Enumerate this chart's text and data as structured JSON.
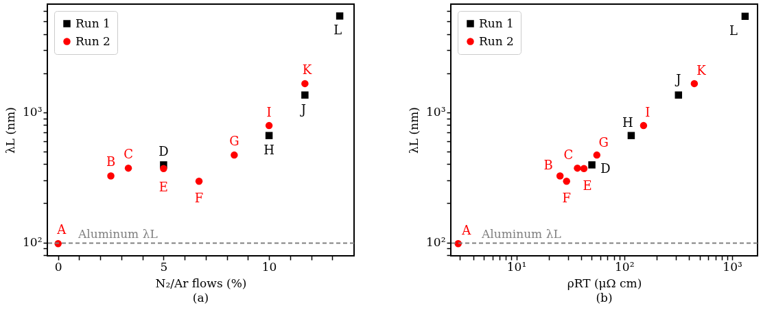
{
  "chart_data": [
    {
      "type": "scatter",
      "title": "(a)",
      "xlabel": "N₂/Ar flows (%)",
      "ylabel": "λL (nm)",
      "log": "y",
      "grid": false,
      "legend": "top left",
      "xlim": [
        -0.51,
        14.03
      ],
      "xticks": [
        0,
        {
          "value": 1,
          "label": null
        },
        {
          "value": 2,
          "label": null
        },
        {
          "value": 3,
          "label": null
        },
        {
          "value": 4,
          "label": null
        },
        5,
        {
          "value": 6,
          "label": null
        },
        {
          "value": 7,
          "label": null
        },
        {
          "value": 8,
          "label": null
        },
        {
          "value": 9,
          "label": null
        },
        10,
        {
          "value": 11,
          "label": null
        },
        {
          "value": 12,
          "label": null
        },
        {
          "value": 13,
          "label": null
        }
      ],
      "ylim": [
        79,
        6800
      ],
      "yticks": [
        {
          "value": 80,
          "label": null
        },
        {
          "value": 90,
          "label": null
        },
        {
          "value": 100,
          "label": "10²"
        },
        {
          "value": 200,
          "label": null
        },
        {
          "value": 300,
          "label": null
        },
        {
          "value": 400,
          "label": null
        },
        {
          "value": 500,
          "label": null
        },
        {
          "value": 600,
          "label": null
        },
        {
          "value": 700,
          "label": null
        },
        {
          "value": 800,
          "label": null
        },
        {
          "value": 900,
          "label": null
        },
        {
          "value": 1000,
          "label": "10³"
        },
        {
          "value": 2000,
          "label": null
        },
        {
          "value": 3000,
          "label": null
        },
        {
          "value": 4000,
          "label": null
        },
        {
          "value": 5000,
          "label": null
        },
        {
          "value": 6000,
          "label": null
        }
      ],
      "ref_lines": [
        {
          "axis": "y",
          "value": 99,
          "label": "Aluminum λL",
          "color": "#808080",
          "line_style": "dashed"
        }
      ],
      "series": [
        {
          "name": "Run 1",
          "color": "#000000",
          "marker": "square",
          "x": [
            5,
            10,
            11.7,
            13.35
          ],
          "values": [
            395,
            664,
            1360,
            5510
          ],
          "value_labels": [
            "D",
            "H",
            "J",
            "L"
          ]
        },
        {
          "name": "Run 2",
          "color": "#ff0000",
          "marker": "circle",
          "x": [
            0,
            2.5,
            3.33,
            5,
            6.68,
            8.35,
            10,
            11.7
          ],
          "values": [
            98,
            325,
            373,
            370,
            296,
            470,
            792,
            1665
          ],
          "value_labels": [
            "A",
            "B",
            "C",
            "E",
            "F",
            "G",
            "I",
            "K"
          ]
        }
      ]
    },
    {
      "type": "scatter",
      "title": "(b)",
      "xlabel": "ρRT (μΩ cm)",
      "ylabel": "λL (nm)",
      "log": "xy",
      "grid": false,
      "legend": "top left",
      "xlim": [
        2.47,
        1718
      ],
      "xticks": [
        {
          "value": 3,
          "label": null
        },
        {
          "value": 4,
          "label": null
        },
        {
          "value": 5,
          "label": null
        },
        {
          "value": 6,
          "label": null
        },
        {
          "value": 7,
          "label": null
        },
        {
          "value": 8,
          "label": null
        },
        {
          "value": 9,
          "label": null
        },
        {
          "value": 10,
          "label": "10¹"
        },
        {
          "value": 20,
          "label": null
        },
        {
          "value": 30,
          "label": null
        },
        {
          "value": 40,
          "label": null
        },
        {
          "value": 50,
          "label": null
        },
        {
          "value": 60,
          "label": null
        },
        {
          "value": 70,
          "label": null
        },
        {
          "value": 80,
          "label": null
        },
        {
          "value": 90,
          "label": null
        },
        {
          "value": 100,
          "label": "10²"
        },
        {
          "value": 200,
          "label": null
        },
        {
          "value": 300,
          "label": null
        },
        {
          "value": 400,
          "label": null
        },
        {
          "value": 500,
          "label": null
        },
        {
          "value": 600,
          "label": null
        },
        {
          "value": 700,
          "label": null
        },
        {
          "value": 800,
          "label": null
        },
        {
          "value": 900,
          "label": null
        },
        {
          "value": 1000,
          "label": "10³"
        }
      ],
      "ylim": [
        79,
        6800
      ],
      "yticks": [
        {
          "value": 80,
          "label": null
        },
        {
          "value": 90,
          "label": null
        },
        {
          "value": 100,
          "label": "10²"
        },
        {
          "value": 200,
          "label": null
        },
        {
          "value": 300,
          "label": null
        },
        {
          "value": 400,
          "label": null
        },
        {
          "value": 500,
          "label": null
        },
        {
          "value": 600,
          "label": null
        },
        {
          "value": 700,
          "label": null
        },
        {
          "value": 800,
          "label": null
        },
        {
          "value": 900,
          "label": null
        },
        {
          "value": 1000,
          "label": "10³"
        },
        {
          "value": 2000,
          "label": null
        },
        {
          "value": 3000,
          "label": null
        },
        {
          "value": 4000,
          "label": null
        },
        {
          "value": 5000,
          "label": null
        },
        {
          "value": 6000,
          "label": null
        }
      ],
      "ref_lines": [
        {
          "axis": "y",
          "value": 99,
          "label": "Aluminum λL",
          "color": "#808080",
          "line_style": "dashed"
        }
      ],
      "series": [
        {
          "name": "Run 1",
          "color": "#000000",
          "marker": "square",
          "x": [
            50.1,
            116,
            318,
            1318
          ],
          "values": [
            395,
            664,
            1360,
            5480
          ],
          "value_labels": [
            "D",
            "H",
            "J",
            "L"
          ]
        },
        {
          "name": "Run 2",
          "color": "#ff0000",
          "marker": "circle",
          "x": [
            2.89,
            25.4,
            36.8,
            42.3,
            29.2,
            55.7,
            151,
            446
          ],
          "values": [
            98,
            325,
            373,
            370,
            296,
            470,
            792,
            1665
          ],
          "value_labels": [
            "A",
            "B",
            "C",
            "E",
            "F",
            "G",
            "I",
            "K"
          ]
        }
      ]
    }
  ]
}
